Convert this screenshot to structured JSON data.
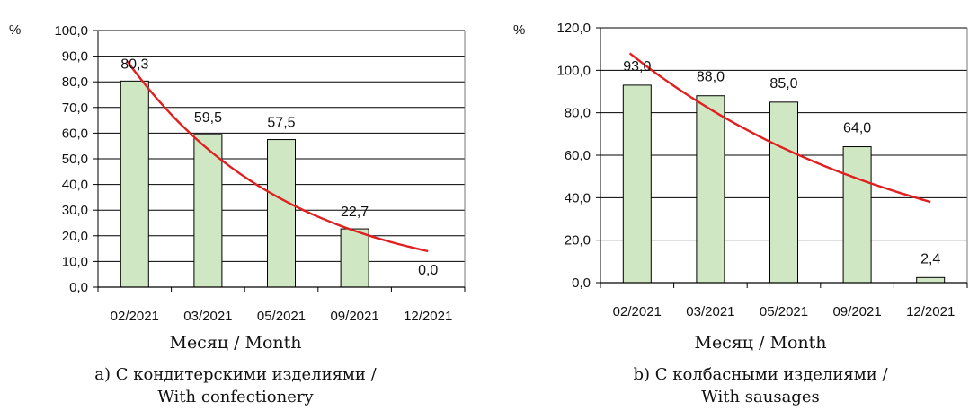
{
  "chart_data": [
    {
      "type": "bar",
      "panel_caption": [
        "а) С кондитерскими изделиями /",
        "With confectionery"
      ],
      "y_unit_label": "%",
      "xlabel": "Месяц / Month",
      "categories": [
        "02/2021",
        "03/2021",
        "05/2021",
        "09/2021",
        "12/2021"
      ],
      "values": [
        80.3,
        59.5,
        57.5,
        22.7,
        0.0
      ],
      "value_labels": [
        "80,3",
        "59,5",
        "57,5",
        "22,7",
        "0,0"
      ],
      "yticks": [
        "0,0",
        "10,0",
        "20,0",
        "30,0",
        "40,0",
        "50,0",
        "60,0",
        "70,0",
        "80,0",
        "90,0",
        "100,0"
      ],
      "ylim": [
        0,
        100
      ],
      "grid": true,
      "trendline": {
        "type": "exponential",
        "points": [
          [
            0.4,
            88
          ],
          [
            1.0,
            62
          ],
          [
            2.0,
            38
          ],
          [
            3.0,
            23
          ],
          [
            4.5,
            14
          ]
        ]
      },
      "colors": {
        "bar_fill": "#cfe7c2",
        "bar_edge": "#000000",
        "trend": "#e02020"
      }
    },
    {
      "type": "bar",
      "panel_caption": [
        "b) С колбасными изделиями /",
        "With sausages"
      ],
      "y_unit_label": "%",
      "xlabel": "Месяц / Month",
      "categories": [
        "02/2021",
        "03/2021",
        "05/2021",
        "09/2021",
        "12/2021"
      ],
      "values": [
        93.0,
        88.0,
        85.0,
        64.0,
        2.4
      ],
      "value_labels": [
        "93,0",
        "88,0",
        "85,0",
        "64,0",
        "2,4"
      ],
      "yticks": [
        "0,0",
        "20,0",
        "40,0",
        "60,0",
        "80,0",
        "100,0",
        "120,0"
      ],
      "ylim": [
        0,
        120
      ],
      "grid": true,
      "trendline": {
        "type": "exponential",
        "points": [
          [
            0.4,
            108
          ],
          [
            1.0,
            85
          ],
          [
            2.0,
            63
          ],
          [
            3.0,
            48
          ],
          [
            4.5,
            38
          ]
        ]
      },
      "colors": {
        "bar_fill": "#cfe7c2",
        "bar_edge": "#000000",
        "trend": "#e02020"
      }
    }
  ]
}
